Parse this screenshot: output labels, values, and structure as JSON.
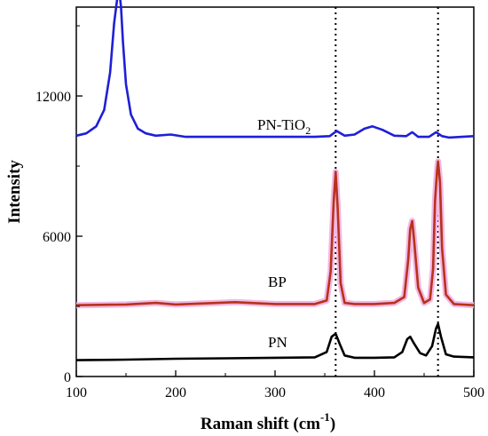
{
  "chart_data": {
    "type": "line",
    "title": "",
    "xlabel": "Raman shift (cm",
    "xlabel_sup": "-1",
    "xlabel_close": ")",
    "ylabel": "Intensity",
    "xlim": [
      100,
      500
    ],
    "ylim": [
      0,
      15800
    ],
    "xticks": [
      100,
      200,
      300,
      400,
      500
    ],
    "yticks": [
      0,
      6000,
      12000
    ],
    "reference_lines_x": [
      361,
      464
    ],
    "legend": "none",
    "grid": false,
    "series": [
      {
        "name": "PN-TiO2",
        "label_text": "PN-TiO",
        "label_sub": "2",
        "color": "#1f1fd6",
        "x": [
          100,
          110,
          120,
          128,
          134,
          138,
          141,
          143,
          144,
          145,
          147,
          150,
          155,
          162,
          170,
          180,
          195,
          210,
          250,
          300,
          340,
          355,
          362,
          370,
          380,
          390,
          398,
          408,
          420,
          432,
          438,
          444,
          455,
          462,
          468,
          475,
          490,
          500
        ],
        "y": [
          10300,
          10400,
          10700,
          11400,
          13000,
          15100,
          16100,
          16300,
          16200,
          15800,
          14300,
          12500,
          11200,
          10600,
          10400,
          10300,
          10350,
          10250,
          10250,
          10250,
          10250,
          10280,
          10500,
          10300,
          10350,
          10600,
          10700,
          10550,
          10300,
          10280,
          10450,
          10250,
          10250,
          10450,
          10280,
          10220,
          10260,
          10280
        ]
      },
      {
        "name": "BP",
        "label_text": "BP",
        "color": "#b8321a",
        "highlight": "#f2b8e6",
        "x": [
          100,
          150,
          180,
          200,
          260,
          300,
          340,
          352,
          356,
          359,
          361,
          363,
          366,
          370,
          380,
          400,
          420,
          430,
          434,
          436,
          438,
          440,
          444,
          450,
          456,
          459,
          461,
          463,
          464,
          466,
          468,
          472,
          480,
          500
        ],
        "y": [
          3050,
          3080,
          3150,
          3080,
          3180,
          3100,
          3100,
          3250,
          4500,
          7500,
          8750,
          7200,
          4000,
          3150,
          3100,
          3100,
          3150,
          3400,
          5000,
          6300,
          6650,
          5800,
          3800,
          3150,
          3300,
          4600,
          7500,
          8800,
          9200,
          8300,
          5500,
          3500,
          3100,
          3050
        ]
      },
      {
        "name": "PN",
        "label_text": "PN",
        "color": "#000000",
        "x": [
          100,
          150,
          200,
          250,
          300,
          340,
          352,
          357,
          361,
          365,
          370,
          380,
          400,
          420,
          428,
          433,
          436,
          440,
          446,
          452,
          458,
          462,
          464,
          467,
          472,
          480,
          500
        ],
        "y": [
          700,
          720,
          760,
          780,
          800,
          820,
          1050,
          1700,
          1830,
          1400,
          900,
          800,
          800,
          820,
          1050,
          1600,
          1700,
          1400,
          1000,
          900,
          1300,
          2050,
          2250,
          1700,
          950,
          850,
          820
        ]
      }
    ]
  }
}
